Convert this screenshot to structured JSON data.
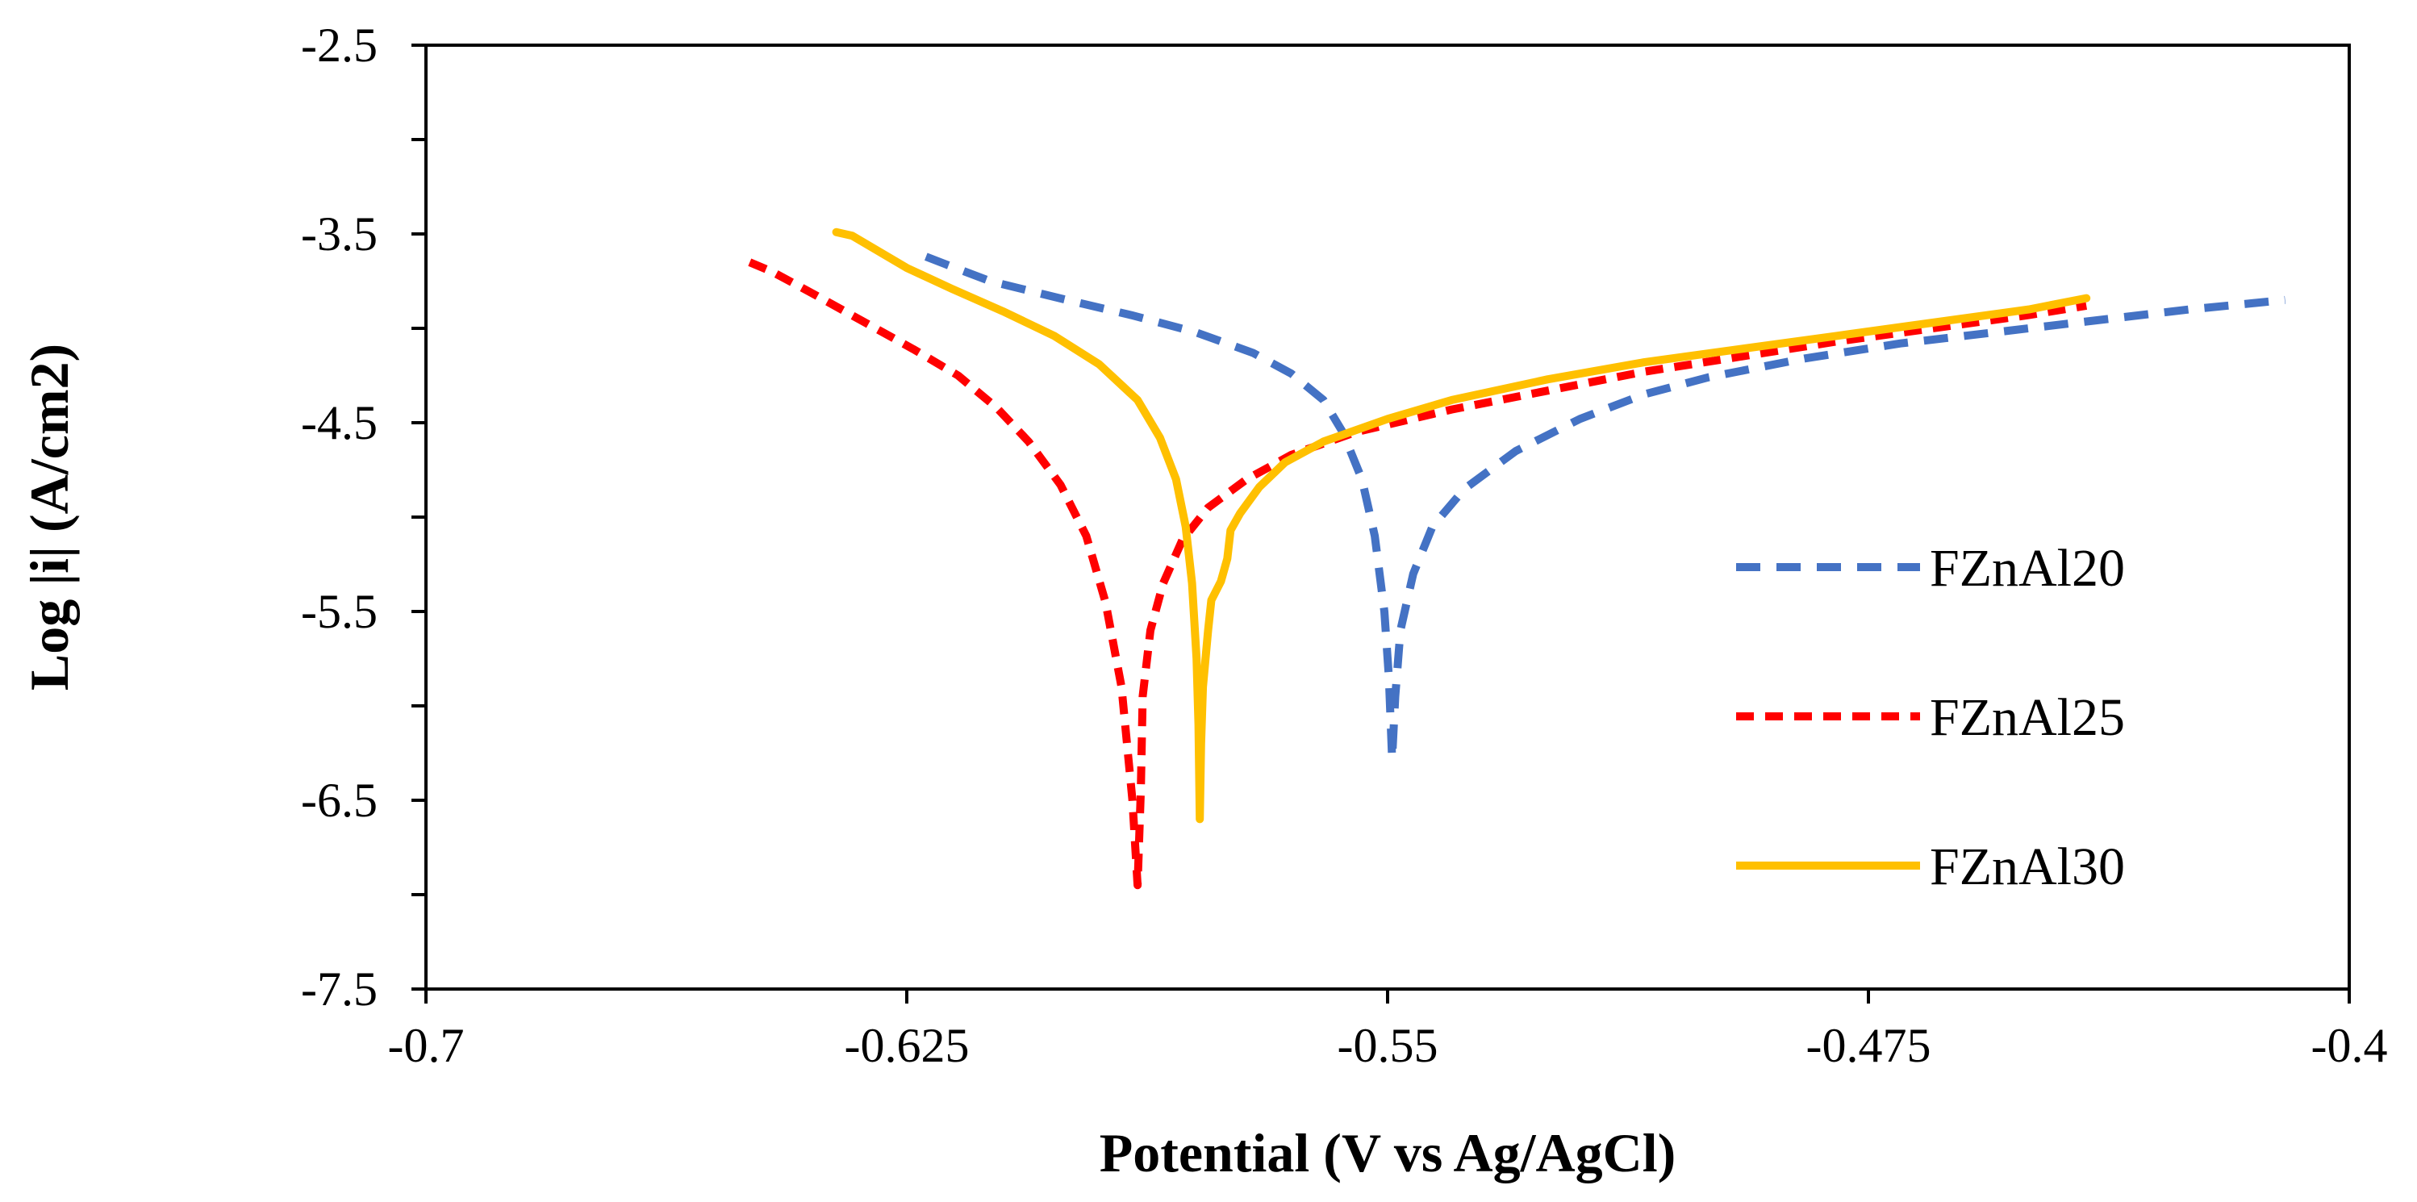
{
  "chart_data": {
    "type": "line",
    "title": "",
    "xlabel": "Potential (V vs Ag/AgCl)",
    "ylabel": "Log |i| (A/cm2)",
    "xlim": [
      -0.7,
      -0.4
    ],
    "ylim": [
      -7.5,
      -2.5
    ],
    "x_ticks": [
      -0.7,
      -0.625,
      -0.55,
      -0.475,
      -0.4
    ],
    "x_tick_labels": [
      "-0.7",
      "-0.625",
      "-0.55",
      "-0.475",
      "-0.4"
    ],
    "y_ticks": [
      -2.5,
      -3.5,
      -4.5,
      -5.5,
      -6.5,
      -7.5
    ],
    "y_tick_labels": [
      "-2.5",
      "-3.5",
      "-4.5",
      "-5.5",
      "-6.5",
      "-7.5"
    ],
    "grid": false,
    "legend_position": "right",
    "series": [
      {
        "name": "FZnAl20",
        "color": "#4472C4",
        "style": "dashed",
        "points": [
          [
            -0.622,
            -3.62
          ],
          [
            -0.619,
            -3.66
          ],
          [
            -0.612,
            -3.75
          ],
          [
            -0.6,
            -3.85
          ],
          [
            -0.59,
            -3.93
          ],
          [
            -0.58,
            -4.02
          ],
          [
            -0.571,
            -4.13
          ],
          [
            -0.565,
            -4.24
          ],
          [
            -0.56,
            -4.38
          ],
          [
            -0.557,
            -4.55
          ],
          [
            -0.554,
            -4.8
          ],
          [
            -0.552,
            -5.1
          ],
          [
            -0.5505,
            -5.5
          ],
          [
            -0.5498,
            -5.85
          ],
          [
            -0.5493,
            -6.28
          ],
          [
            -0.5488,
            -5.95
          ],
          [
            -0.548,
            -5.6
          ],
          [
            -0.546,
            -5.3
          ],
          [
            -0.543,
            -5.05
          ],
          [
            -0.538,
            -4.85
          ],
          [
            -0.53,
            -4.65
          ],
          [
            -0.52,
            -4.48
          ],
          [
            -0.51,
            -4.35
          ],
          [
            -0.5,
            -4.26
          ],
          [
            -0.485,
            -4.16
          ],
          [
            -0.47,
            -4.08
          ],
          [
            -0.455,
            -4.02
          ],
          [
            -0.44,
            -3.96
          ],
          [
            -0.425,
            -3.9
          ],
          [
            -0.41,
            -3.85
          ]
        ]
      },
      {
        "name": "FZnAl25",
        "color": "#FF0000",
        "style": "dashed",
        "points": [
          [
            -0.6495,
            -3.65
          ],
          [
            -0.646,
            -3.7
          ],
          [
            -0.64,
            -3.81
          ],
          [
            -0.632,
            -3.96
          ],
          [
            -0.624,
            -4.11
          ],
          [
            -0.617,
            -4.25
          ],
          [
            -0.611,
            -4.42
          ],
          [
            -0.606,
            -4.6
          ],
          [
            -0.601,
            -4.83
          ],
          [
            -0.597,
            -5.1
          ],
          [
            -0.594,
            -5.45
          ],
          [
            -0.5915,
            -5.9
          ],
          [
            -0.5898,
            -6.5
          ],
          [
            -0.589,
            -6.95
          ],
          [
            -0.5885,
            -6.45
          ],
          [
            -0.5882,
            -5.95
          ],
          [
            -0.587,
            -5.6
          ],
          [
            -0.585,
            -5.35
          ],
          [
            -0.582,
            -5.12
          ],
          [
            -0.578,
            -4.95
          ],
          [
            -0.572,
            -4.8
          ],
          [
            -0.565,
            -4.67
          ],
          [
            -0.555,
            -4.55
          ],
          [
            -0.54,
            -4.43
          ],
          [
            -0.525,
            -4.33
          ],
          [
            -0.51,
            -4.23
          ],
          [
            -0.495,
            -4.15
          ],
          [
            -0.48,
            -4.07
          ],
          [
            -0.465,
            -4.0
          ],
          [
            -0.45,
            -3.93
          ],
          [
            -0.441,
            -3.88
          ]
        ]
      },
      {
        "name": "FZnAl30",
        "color": "#FFC000",
        "style": "solid",
        "points": [
          [
            -0.636,
            -3.49
          ],
          [
            -0.6335,
            -3.51
          ],
          [
            -0.63,
            -3.58
          ],
          [
            -0.625,
            -3.68
          ],
          [
            -0.618,
            -3.79
          ],
          [
            -0.61,
            -3.91
          ],
          [
            -0.602,
            -4.04
          ],
          [
            -0.595,
            -4.19
          ],
          [
            -0.589,
            -4.38
          ],
          [
            -0.5855,
            -4.58
          ],
          [
            -0.583,
            -4.8
          ],
          [
            -0.5815,
            -5.05
          ],
          [
            -0.5805,
            -5.35
          ],
          [
            -0.5798,
            -5.75
          ],
          [
            -0.5795,
            -6.1
          ],
          [
            -0.5793,
            -6.6
          ],
          [
            -0.5791,
            -6.2
          ],
          [
            -0.5788,
            -5.9
          ],
          [
            -0.578,
            -5.6
          ],
          [
            -0.5775,
            -5.44
          ],
          [
            -0.576,
            -5.34
          ],
          [
            -0.575,
            -5.22
          ],
          [
            -0.5745,
            -5.07
          ],
          [
            -0.573,
            -4.98
          ],
          [
            -0.57,
            -4.84
          ],
          [
            -0.566,
            -4.71
          ],
          [
            -0.56,
            -4.6
          ],
          [
            -0.55,
            -4.48
          ],
          [
            -0.54,
            -4.38
          ],
          [
            -0.525,
            -4.27
          ],
          [
            -0.51,
            -4.18
          ],
          [
            -0.495,
            -4.11
          ],
          [
            -0.48,
            -4.04
          ],
          [
            -0.465,
            -3.97
          ],
          [
            -0.45,
            -3.9
          ],
          [
            -0.441,
            -3.84
          ]
        ]
      }
    ]
  }
}
